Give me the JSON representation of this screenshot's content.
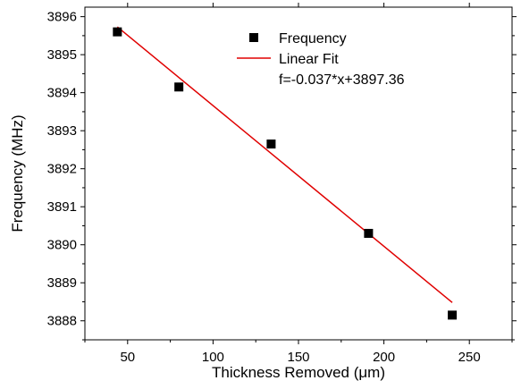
{
  "chart_data": {
    "type": "scatter",
    "title": "",
    "xlabel": "Thickness Removed (μm)",
    "ylabel": "Frequency (MHz)",
    "xlim": [
      25,
      275
    ],
    "ylim": [
      3887.5,
      3896.25
    ],
    "xticks": [
      50,
      100,
      150,
      200,
      250
    ],
    "yticks": [
      3888,
      3889,
      3890,
      3891,
      3892,
      3893,
      3894,
      3895,
      3896
    ],
    "grid": false,
    "legend_position": "top-right",
    "series": [
      {
        "name": "Frequency",
        "kind": "scatter",
        "marker": "square",
        "color": "#000000",
        "x": [
          44,
          80,
          134,
          191,
          240
        ],
        "y": [
          3895.6,
          3894.15,
          3892.65,
          3890.3,
          3888.15
        ]
      },
      {
        "name": "Linear Fit",
        "kind": "line",
        "color": "#e00000",
        "x": [
          44,
          240
        ],
        "y": [
          3895.732,
          3888.48
        ]
      }
    ],
    "annotation": "f=-0.037*x+3897.36"
  }
}
